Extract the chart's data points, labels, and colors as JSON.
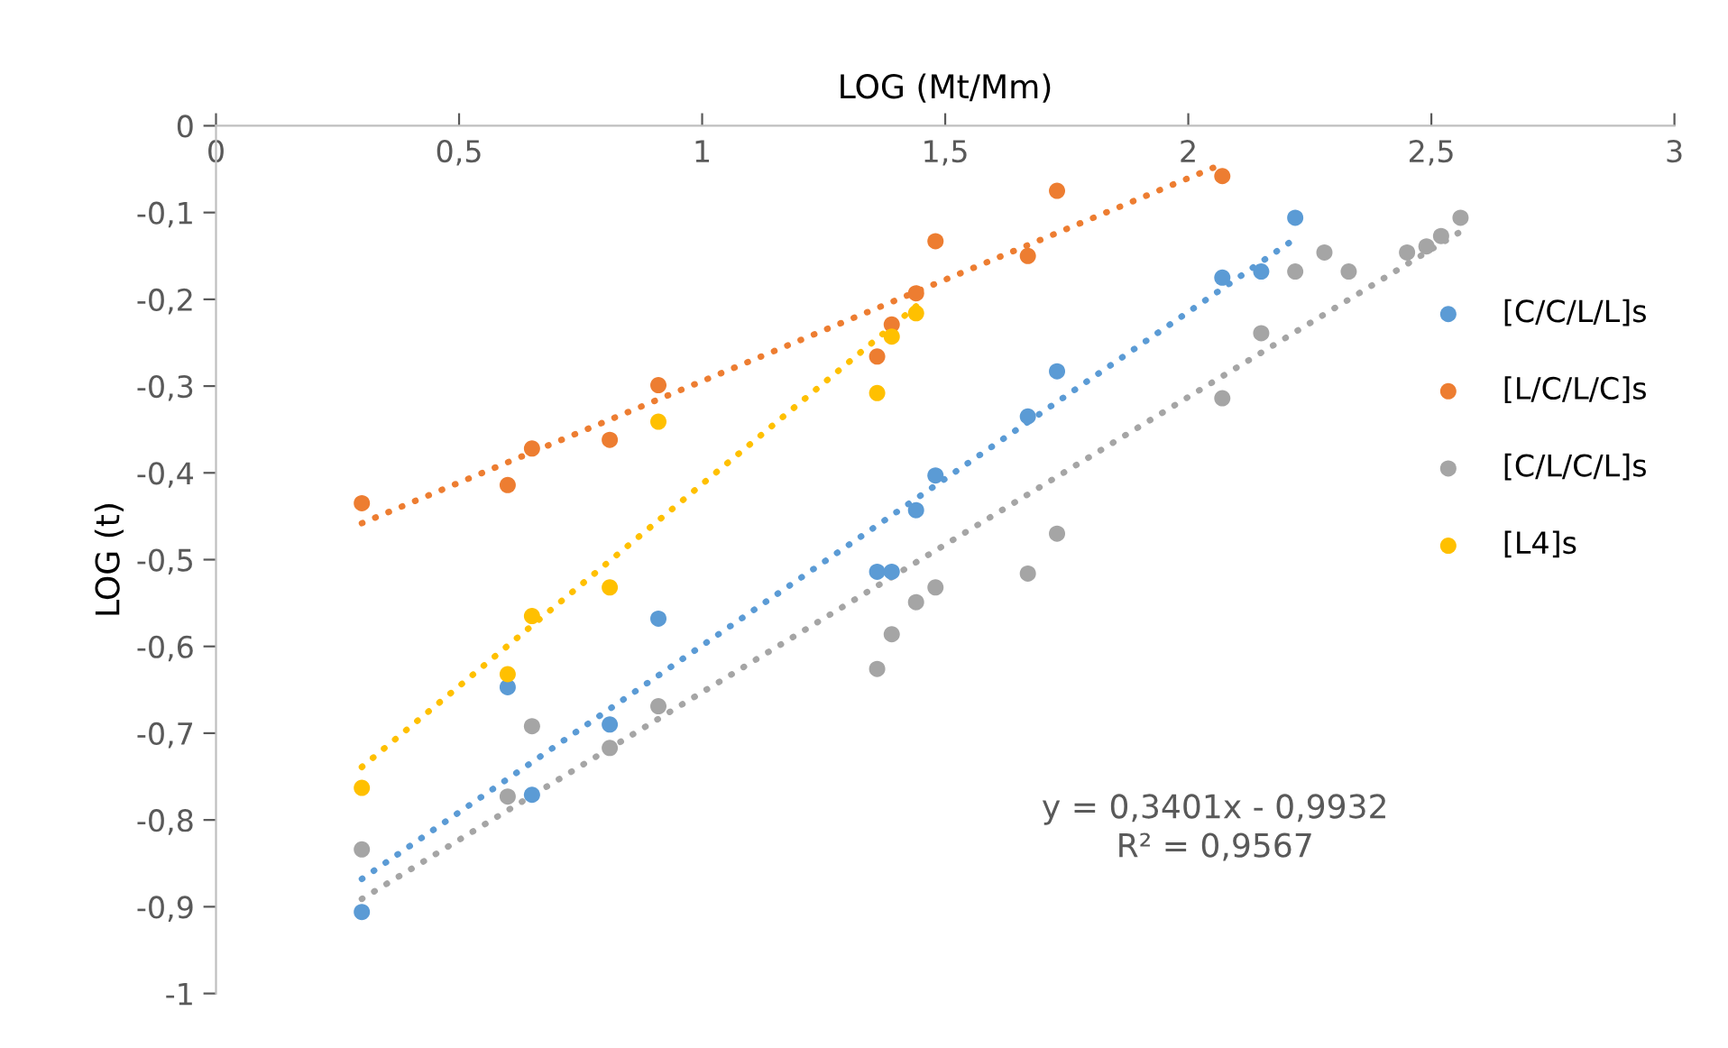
{
  "chart_data": {
    "type": "scatter",
    "xlabel": "LOG (Mt/Mm)",
    "ylabel": "LOG (t)",
    "xlim": [
      0,
      3
    ],
    "xticks": [
      0,
      {
        "value": 0.5,
        "label": "0,5"
      },
      1,
      {
        "value": 1.5,
        "label": "1,5"
      },
      2,
      {
        "value": 2.5,
        "label": "2,5"
      },
      3
    ],
    "ylim": [
      -1,
      0
    ],
    "yticks": [
      0,
      {
        "value": -0.1,
        "label": "-0,1"
      },
      {
        "value": -0.2,
        "label": "-0,2"
      },
      {
        "value": -0.3,
        "label": "-0,3"
      },
      {
        "value": -0.4,
        "label": "-0,4"
      },
      {
        "value": -0.5,
        "label": "-0,5"
      },
      {
        "value": -0.6,
        "label": "-0,6"
      },
      {
        "value": -0.7,
        "label": "-0,7"
      },
      {
        "value": -0.8,
        "label": "-0,8"
      },
      {
        "value": -0.9,
        "label": "-0,9"
      },
      -1
    ],
    "grid": false,
    "legend": "right",
    "marker": "circle",
    "annotations": [
      "y = 0,3401x - 0,9932\nR² = 0,9567"
    ],
    "series": [
      {
        "name": "[C/C/L/L]s",
        "color": "#5b9bd5",
        "x": [
          0.3,
          0.6,
          0.65,
          0.81,
          0.91,
          1.36,
          1.39,
          1.44,
          1.48,
          1.67,
          1.73,
          2.07,
          2.15,
          2.22
        ],
        "values": [
          -0.906,
          -0.647,
          -0.771,
          -0.69,
          -0.568,
          -0.514,
          -0.514,
          -0.443,
          -0.403,
          -0.335,
          -0.283,
          -0.175,
          -0.168,
          -0.106
        ]
      },
      {
        "name": "[L/C/L/C]s",
        "color": "#ed7d31",
        "x": [
          0.3,
          0.6,
          0.65,
          0.81,
          0.91,
          1.36,
          1.39,
          1.44,
          1.48,
          1.67,
          1.73,
          2.07
        ],
        "values": [
          -0.435,
          -0.414,
          -0.372,
          -0.362,
          -0.299,
          -0.266,
          -0.229,
          -0.193,
          -0.133,
          -0.15,
          -0.075,
          -0.058
        ]
      },
      {
        "name": "[C/L/C/L]s",
        "color": "#a5a5a5",
        "x": [
          0.3,
          0.6,
          0.65,
          0.81,
          0.91,
          1.36,
          1.39,
          1.44,
          1.48,
          1.67,
          1.73,
          2.07,
          2.15,
          2.22,
          2.28,
          2.33,
          2.45,
          2.49,
          2.52,
          2.56
        ],
        "values": [
          -0.834,
          -0.773,
          -0.692,
          -0.717,
          -0.669,
          -0.626,
          -0.586,
          -0.549,
          -0.532,
          -0.516,
          -0.47,
          -0.314,
          -0.239,
          -0.168,
          -0.146,
          -0.168,
          -0.146,
          -0.139,
          -0.127,
          -0.106
        ]
      },
      {
        "name": "[L4]s",
        "color": "#ffc000",
        "x": [
          0.3,
          0.6,
          0.65,
          0.81,
          0.91,
          1.36,
          1.39,
          1.44
        ],
        "values": [
          -0.763,
          -0.632,
          -0.565,
          -0.532,
          -0.341,
          -0.308,
          -0.243,
          -0.216
        ]
      },
      {
        "type": "line",
        "color": "#5b9bd5",
        "line_style": "dotted",
        "marker": "none",
        "x": [
          0.3,
          2.22
        ],
        "values": [
          -0.868,
          -0.13
        ]
      },
      {
        "type": "line",
        "color": "#ed7d31",
        "line_style": "dotted",
        "marker": "none",
        "x": [
          0.3,
          2.07
        ],
        "values": [
          -0.458,
          -0.044
        ]
      },
      {
        "type": "line",
        "color": "#a5a5a5",
        "line_style": "dotted",
        "marker": "none",
        "x": [
          0.3,
          2.56
        ],
        "values": [
          -0.891,
          -0.122
        ]
      },
      {
        "type": "line",
        "color": "#ffc000",
        "line_style": "dotted",
        "marker": "none",
        "x": [
          0.3,
          1.44
        ],
        "values": [
          -0.739,
          -0.208
        ]
      }
    ]
  }
}
